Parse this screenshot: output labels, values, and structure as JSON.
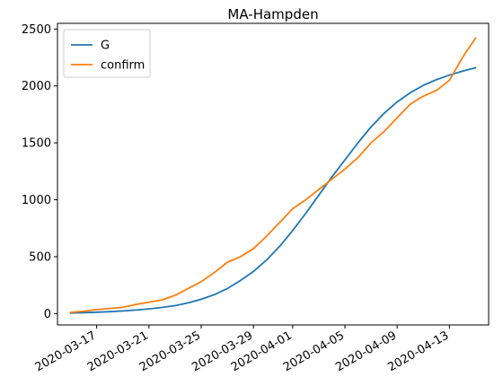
{
  "chart_data": {
    "type": "line",
    "title": "MA-Hampden",
    "xlabel": "",
    "ylabel": "",
    "x_start": "2020-03-15",
    "x_end": "2020-04-15",
    "xlim": [
      "2020-03-14",
      "2020-04-16"
    ],
    "ylim": [
      -100,
      2550
    ],
    "xticks": [
      "2020-03-17",
      "2020-03-21",
      "2020-03-25",
      "2020-03-29",
      "2020-04-01",
      "2020-04-05",
      "2020-04-09",
      "2020-04-13"
    ],
    "yticks": [
      0,
      500,
      1000,
      1500,
      2000,
      2500
    ],
    "legend_position": "upper-left",
    "grid": false,
    "series": [
      {
        "name": "G",
        "color": "#1f77b4",
        "values": [
          5,
          8,
          12,
          17,
          23,
          31,
          41,
          54,
          70,
          94,
          126,
          166,
          220,
          290,
          370,
          470,
          590,
          730,
          880,
          1040,
          1200,
          1350,
          1500,
          1640,
          1760,
          1860,
          1940,
          2005,
          2055,
          2095,
          2130,
          2160
        ]
      },
      {
        "name": "confirm",
        "color": "#ff7f0e",
        "values": [
          10,
          20,
          35,
          45,
          55,
          80,
          100,
          120,
          160,
          220,
          280,
          360,
          450,
          500,
          570,
          680,
          800,
          920,
          1000,
          1090,
          1180,
          1270,
          1370,
          1500,
          1600,
          1720,
          1840,
          1910,
          1960,
          2050,
          2250,
          2420
        ]
      }
    ]
  }
}
